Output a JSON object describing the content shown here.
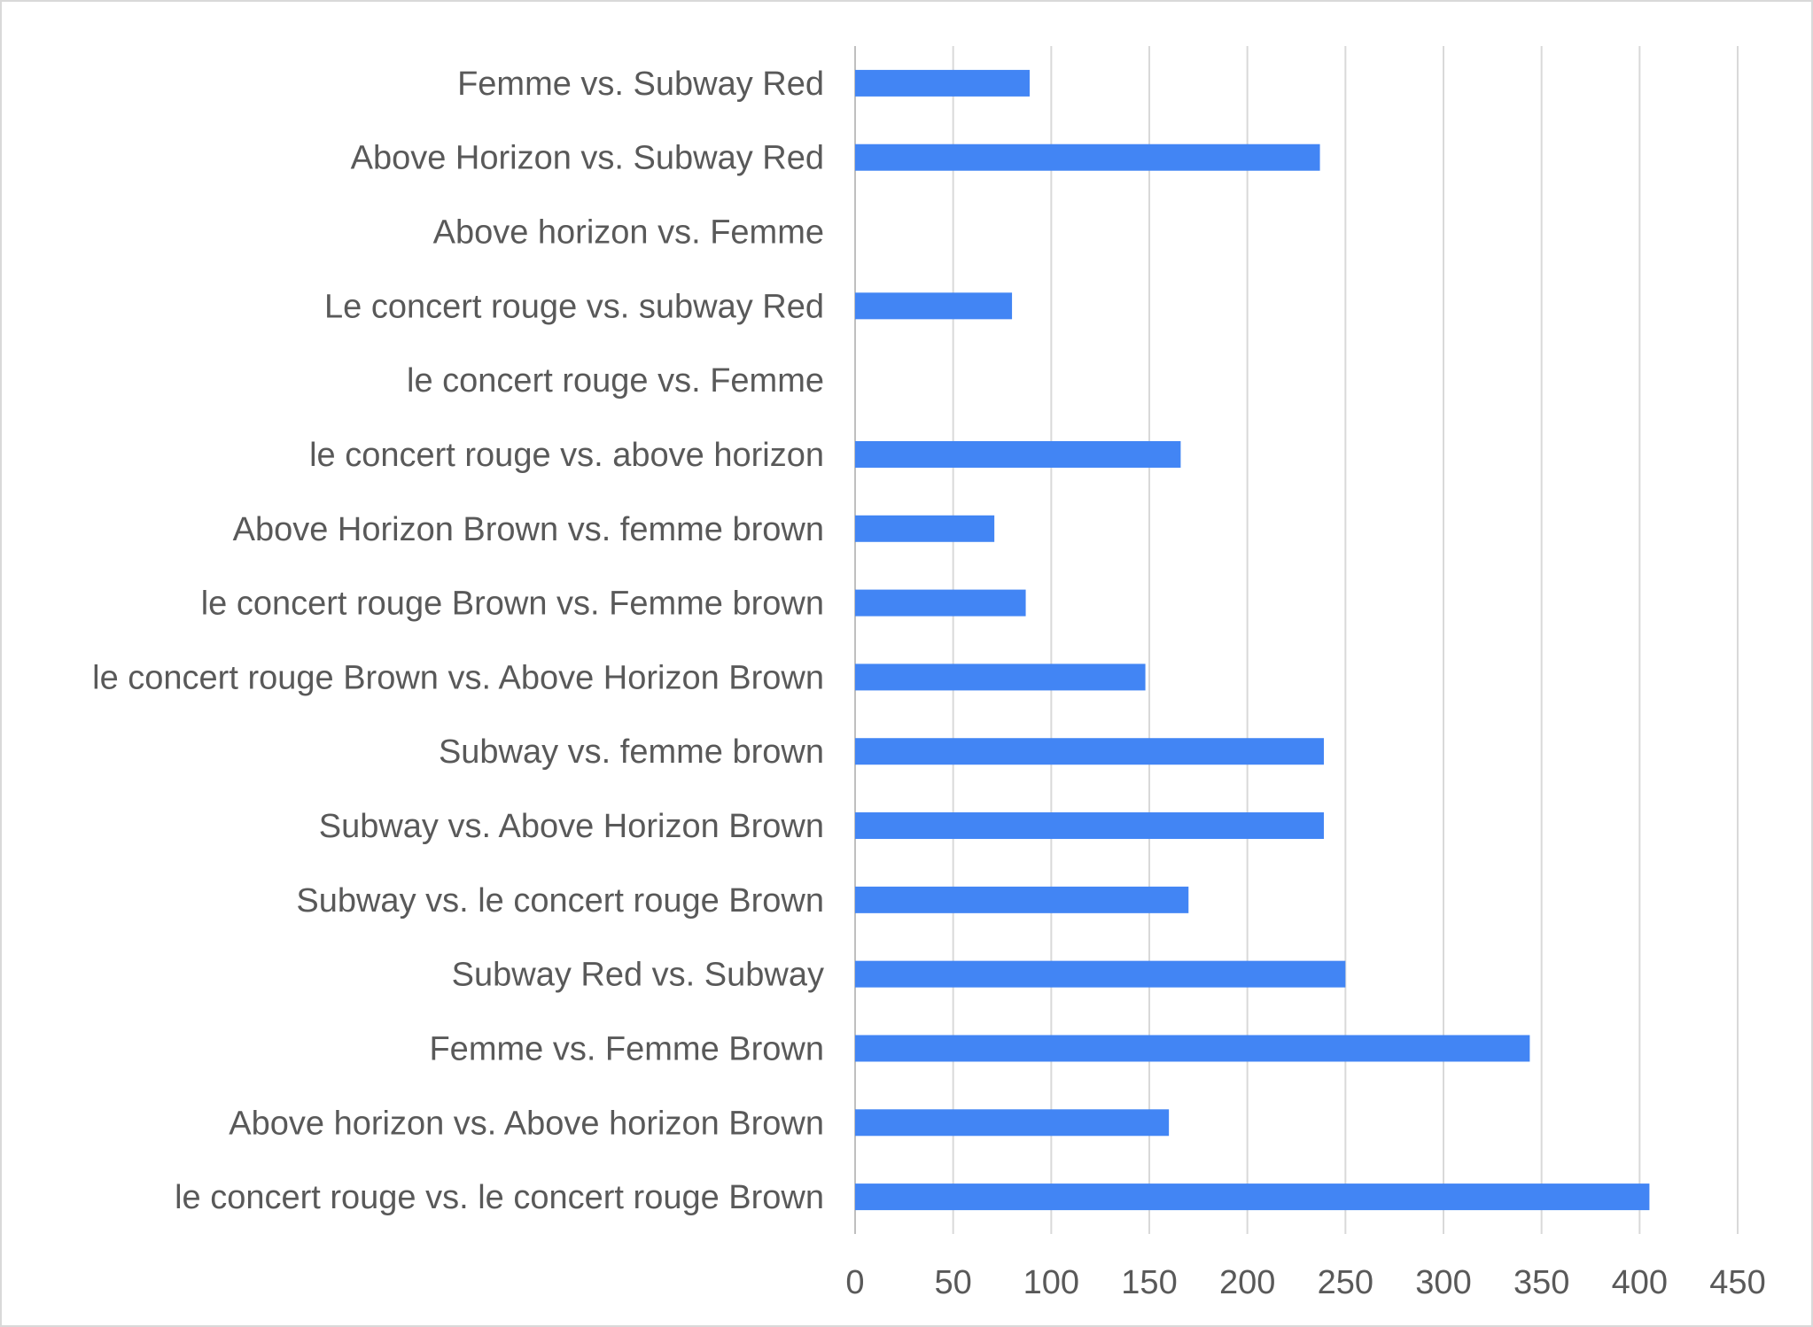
{
  "chart_data": {
    "type": "bar",
    "orientation": "horizontal",
    "title": "",
    "xlabel": "",
    "ylabel": "",
    "categories": [
      "Femme vs. Subway Red",
      "Above Horizon vs. Subway Red",
      "Above horizon vs. Femme",
      "Le concert rouge vs. subway Red",
      "le concert rouge vs. Femme",
      "le concert rouge vs. above horizon",
      "Above Horizon Brown vs. femme brown",
      "le concert rouge Brown vs. Femme brown",
      "le concert rouge Brown vs. Above Horizon Brown",
      "Subway vs. femme brown",
      "Subway vs. Above Horizon Brown",
      "Subway vs. le concert rouge Brown",
      "Subway Red vs. Subway",
      "Femme vs. Femme Brown",
      "Above horizon vs. Above horizon Brown",
      "le concert rouge vs. le concert rouge Brown"
    ],
    "values": [
      89,
      237,
      0,
      80,
      0,
      166,
      71,
      87,
      148,
      239,
      239,
      170,
      250,
      344,
      160,
      405
    ],
    "xlim": [
      0,
      450
    ],
    "xticks": [
      "0",
      "50",
      "100",
      "150",
      "200",
      "250",
      "300",
      "350",
      "400",
      "450"
    ],
    "grid": true,
    "legend": "none",
    "bar_color": "#4285f4"
  }
}
